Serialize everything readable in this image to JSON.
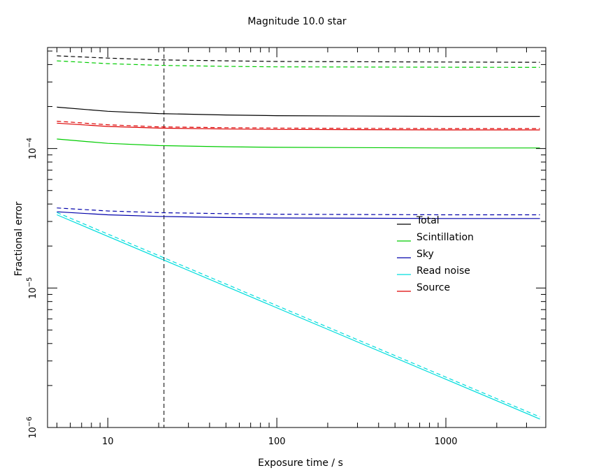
{
  "chart_data": {
    "type": "line",
    "title": "Magnitude 10.0 star",
    "xlabel": "Exposure time / s",
    "ylabel": "Fractional error",
    "x_scale": "log",
    "y_scale": "log",
    "xlim": [
      4.4,
      3900
    ],
    "ylim": [
      1e-06,
      0.00053
    ],
    "grid": false,
    "legend_position": "right-middle",
    "x_ticks": [
      {
        "value": 10,
        "label": "10"
      },
      {
        "value": 100,
        "label": "100"
      },
      {
        "value": 1000,
        "label": "1000"
      }
    ],
    "y_ticks": [
      {
        "value": 1e-06,
        "base": "10",
        "exp": "−6"
      },
      {
        "value": 1e-05,
        "base": "10",
        "exp": "−5"
      },
      {
        "value": 0.0001,
        "base": "10",
        "exp": "−4"
      }
    ],
    "vertical_marker": {
      "x": 21.5,
      "style": "dashed",
      "color": "#000000"
    },
    "series": [
      {
        "name": "Total",
        "color": "#000000",
        "style": "solid",
        "x": [
          5,
          10,
          20,
          50,
          100,
          1000,
          3600
        ],
        "y": [
          0.000198,
          0.000185,
          0.000178,
          0.000174,
          0.000172,
          0.00017,
          0.00017
        ]
      },
      {
        "name": "Total",
        "color": "#000000",
        "style": "dashed",
        "x": [
          5,
          10,
          20,
          50,
          100,
          1000,
          3600
        ],
        "y": [
          0.000462,
          0.000445,
          0.000432,
          0.000425,
          0.000421,
          0.000417,
          0.000415
        ]
      },
      {
        "name": "Scintillation",
        "color": "#00cc00",
        "style": "solid",
        "x": [
          5,
          10,
          20,
          50,
          100,
          1000,
          3600
        ],
        "y": [
          0.000117,
          0.000109,
          0.000105,
          0.000103,
          0.000102,
          0.000101,
          0.000101
        ]
      },
      {
        "name": "Scintillation",
        "color": "#00cc00",
        "style": "dashed",
        "x": [
          5,
          10,
          20,
          50,
          100,
          1000,
          3600
        ],
        "y": [
          0.000425,
          0.000406,
          0.000395,
          0.000388,
          0.000385,
          0.000383,
          0.000382
        ]
      },
      {
        "name": "Sky",
        "color": "#0000aa",
        "style": "solid",
        "x": [
          5,
          10,
          20,
          50,
          100,
          1000,
          3600
        ],
        "y": [
          3.52e-05,
          3.35e-05,
          3.26e-05,
          3.2e-05,
          3.18e-05,
          3.15e-05,
          3.15e-05
        ]
      },
      {
        "name": "Sky",
        "color": "#0000aa",
        "style": "dashed",
        "x": [
          5,
          10,
          20,
          50,
          100,
          1000,
          3600
        ],
        "y": [
          3.75e-05,
          3.57e-05,
          3.47e-05,
          3.41e-05,
          3.38e-05,
          3.35e-05,
          3.35e-05
        ]
      },
      {
        "name": "Read noise",
        "color": "#00dddd",
        "style": "solid",
        "x": [
          5,
          3600
        ],
        "y": [
          3.35e-05,
          1.15e-06
        ]
      },
      {
        "name": "Read noise",
        "color": "#00dddd",
        "style": "dashed",
        "x": [
          5,
          3600
        ],
        "y": [
          3.48e-05,
          1.19e-06
        ]
      },
      {
        "name": "Source",
        "color": "#dd0000",
        "style": "solid",
        "x": [
          5,
          10,
          20,
          50,
          100,
          1000,
          3600
        ],
        "y": [
          0.000152,
          0.000144,
          0.00014,
          0.000138,
          0.000137,
          0.000136,
          0.000136
        ]
      },
      {
        "name": "Source",
        "color": "#dd0000",
        "style": "dashed",
        "x": [
          5,
          10,
          20,
          50,
          100,
          1000,
          3600
        ],
        "y": [
          0.000157,
          0.000148,
          0.000143,
          0.000141,
          0.00014,
          0.000139,
          0.000139
        ]
      }
    ],
    "legend": [
      {
        "label": "Total",
        "color": "#000000"
      },
      {
        "label": "Scintillation",
        "color": "#00cc00"
      },
      {
        "label": "Sky",
        "color": "#0000aa"
      },
      {
        "label": "Read noise",
        "color": "#00dddd"
      },
      {
        "label": "Source",
        "color": "#dd0000"
      }
    ]
  }
}
